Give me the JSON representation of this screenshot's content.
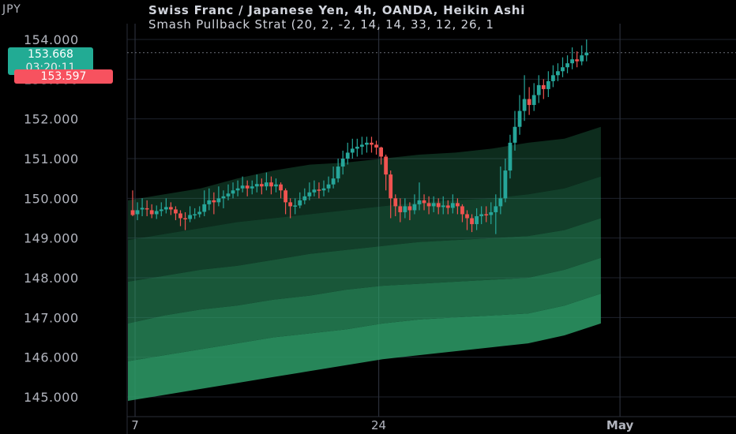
{
  "header": {
    "line1": "Swiss Franc / Japanese Yen, 4h, OANDA, Heikin Ashi",
    "line2": "Smash Pullback Strat (20, 2, -2, 14, 14, 33, 12, 26, 1"
  },
  "currency_label": "JPY",
  "badges": {
    "close_price": "153.668",
    "countdown": "03:20:11",
    "red_price": "153.597"
  },
  "colors": {
    "up": "#26a69a",
    "down": "#ef5350",
    "band_fill": "#2e9e68",
    "grid": "#1e222d",
    "background": "#000000"
  },
  "chart_data": {
    "type": "candlestick",
    "title": "Swiss Franc / Japanese Yen, 4h, OANDA, Heikin Ashi",
    "y_ticks": [
      "145.000",
      "146.000",
      "147.000",
      "148.000",
      "149.000",
      "150.000",
      "151.000",
      "152.000",
      "153.000",
      "154.000"
    ],
    "ylim": [
      144.7,
      154.85
    ],
    "x_ticks": [
      {
        "label": "7",
        "index": 0.5
      },
      {
        "label": "24",
        "index": 51.5
      },
      {
        "label": "May",
        "index": 102
      }
    ],
    "grid": true,
    "last_price_line": 153.668,
    "candles": [
      [
        149.7,
        149.58,
        150.2,
        149.55
      ],
      [
        149.6,
        149.7,
        149.9,
        149.45
      ],
      [
        149.72,
        149.76,
        150.0,
        149.55
      ],
      [
        149.75,
        149.72,
        149.95,
        149.55
      ],
      [
        149.7,
        149.6,
        149.85,
        149.5
      ],
      [
        149.6,
        149.68,
        149.82,
        149.48
      ],
      [
        149.68,
        149.72,
        149.9,
        149.55
      ],
      [
        149.72,
        149.78,
        150.0,
        149.62
      ],
      [
        149.78,
        149.72,
        149.9,
        149.58
      ],
      [
        149.72,
        149.62,
        149.8,
        149.45
      ],
      [
        149.62,
        149.5,
        149.7,
        149.3
      ],
      [
        149.5,
        149.48,
        149.65,
        149.2
      ],
      [
        149.48,
        149.58,
        149.8,
        149.4
      ],
      [
        149.58,
        149.6,
        149.75,
        149.48
      ],
      [
        149.6,
        149.66,
        149.8,
        149.52
      ],
      [
        149.66,
        149.85,
        150.2,
        149.55
      ],
      [
        149.85,
        149.95,
        150.25,
        149.7
      ],
      [
        149.95,
        149.9,
        150.15,
        149.6
      ],
      [
        149.9,
        150.0,
        150.3,
        149.8
      ],
      [
        150.0,
        150.05,
        150.2,
        149.75
      ],
      [
        150.05,
        150.12,
        150.35,
        149.95
      ],
      [
        150.12,
        150.2,
        150.4,
        150.0
      ],
      [
        150.2,
        150.25,
        150.45,
        150.05
      ],
      [
        150.25,
        150.32,
        150.55,
        150.15
      ],
      [
        150.32,
        150.25,
        150.45,
        150.05
      ],
      [
        150.25,
        150.3,
        150.45,
        150.1
      ],
      [
        150.3,
        150.36,
        150.6,
        150.15
      ],
      [
        150.36,
        150.3,
        150.5,
        150.1
      ],
      [
        150.3,
        150.4,
        150.65,
        150.2
      ],
      [
        150.4,
        150.3,
        150.55,
        150.1
      ],
      [
        150.3,
        150.35,
        150.5,
        150.15
      ],
      [
        150.35,
        150.2,
        150.4,
        150.0
      ],
      [
        150.2,
        149.9,
        150.25,
        149.6
      ],
      [
        149.9,
        149.8,
        150.0,
        149.5
      ],
      [
        149.8,
        149.82,
        150.0,
        149.6
      ],
      [
        149.82,
        149.95,
        150.15,
        149.75
      ],
      [
        149.95,
        150.05,
        150.25,
        149.85
      ],
      [
        150.05,
        150.15,
        150.4,
        149.95
      ],
      [
        150.15,
        150.22,
        150.45,
        150.05
      ],
      [
        150.22,
        150.2,
        150.4,
        150.0
      ],
      [
        150.2,
        150.25,
        150.45,
        150.05
      ],
      [
        150.25,
        150.35,
        150.55,
        150.15
      ],
      [
        150.35,
        150.5,
        150.8,
        150.25
      ],
      [
        150.5,
        150.8,
        151.0,
        150.4
      ],
      [
        150.8,
        151.0,
        151.2,
        150.6
      ],
      [
        151.0,
        151.15,
        151.4,
        150.85
      ],
      [
        151.15,
        151.25,
        151.5,
        151.0
      ],
      [
        151.25,
        151.3,
        151.5,
        151.05
      ],
      [
        151.3,
        151.35,
        151.55,
        151.1
      ],
      [
        151.35,
        151.4,
        151.55,
        151.15
      ],
      [
        151.4,
        151.35,
        151.55,
        151.15
      ],
      [
        151.35,
        151.28,
        151.45,
        151.1
      ],
      [
        151.28,
        151.05,
        151.3,
        150.85
      ],
      [
        151.05,
        150.6,
        151.1,
        150.2
      ],
      [
        150.6,
        150.0,
        150.7,
        149.5
      ],
      [
        150.0,
        149.8,
        150.1,
        149.55
      ],
      [
        149.8,
        149.65,
        150.0,
        149.4
      ],
      [
        149.65,
        149.8,
        150.0,
        149.5
      ],
      [
        149.8,
        149.7,
        149.9,
        149.45
      ],
      [
        149.7,
        149.85,
        150.1,
        149.6
      ],
      [
        149.85,
        149.95,
        150.4,
        149.7
      ],
      [
        149.95,
        149.88,
        150.1,
        149.7
      ],
      [
        149.88,
        149.8,
        150.05,
        149.6
      ],
      [
        149.8,
        149.88,
        150.05,
        149.65
      ],
      [
        149.88,
        149.78,
        150.0,
        149.6
      ],
      [
        149.78,
        149.82,
        150.05,
        149.6
      ],
      [
        149.82,
        149.76,
        149.95,
        149.6
      ],
      [
        149.76,
        149.88,
        150.1,
        149.62
      ],
      [
        149.88,
        149.8,
        150.0,
        149.6
      ],
      [
        149.8,
        149.6,
        149.85,
        149.4
      ],
      [
        149.6,
        149.5,
        149.7,
        149.2
      ],
      [
        149.5,
        149.35,
        149.6,
        149.15
      ],
      [
        149.35,
        149.55,
        149.75,
        149.2
      ],
      [
        149.55,
        149.6,
        149.8,
        149.35
      ],
      [
        149.6,
        149.58,
        149.8,
        149.4
      ],
      [
        149.58,
        149.65,
        149.9,
        149.35
      ],
      [
        149.65,
        149.8,
        150.1,
        149.1
      ],
      [
        149.8,
        150.0,
        150.8,
        149.6
      ],
      [
        150.0,
        150.7,
        151.0,
        149.9
      ],
      [
        150.7,
        151.4,
        151.6,
        150.5
      ],
      [
        151.4,
        151.8,
        152.2,
        151.2
      ],
      [
        151.8,
        152.2,
        152.6,
        151.6
      ],
      [
        152.2,
        152.5,
        153.1,
        151.95
      ],
      [
        152.5,
        152.35,
        152.8,
        152.1
      ],
      [
        152.35,
        152.6,
        152.9,
        152.2
      ],
      [
        152.6,
        152.85,
        153.1,
        152.4
      ],
      [
        152.85,
        152.75,
        153.0,
        152.5
      ],
      [
        152.75,
        152.95,
        153.2,
        152.55
      ],
      [
        152.95,
        153.1,
        153.35,
        152.8
      ],
      [
        153.1,
        153.2,
        153.4,
        152.95
      ],
      [
        153.2,
        153.3,
        153.55,
        153.05
      ],
      [
        153.3,
        153.4,
        153.6,
        153.15
      ],
      [
        153.4,
        153.5,
        153.8,
        153.25
      ],
      [
        153.5,
        153.45,
        153.7,
        153.3
      ],
      [
        153.45,
        153.6,
        153.85,
        153.35
      ],
      [
        153.6,
        153.668,
        154.0,
        153.45
      ]
    ],
    "bands": {
      "x_start_index": 0,
      "x_end_index": 98,
      "boundaries": [
        [
          149.95,
          150.1,
          150.25,
          150.5,
          150.7,
          150.85,
          150.9,
          151.0,
          151.1,
          151.15,
          151.25,
          151.4,
          151.5,
          151.8
        ],
        [
          148.95,
          149.1,
          149.25,
          149.4,
          149.5,
          149.6,
          149.7,
          149.8,
          149.9,
          149.95,
          150.0,
          150.1,
          150.25,
          150.55
        ],
        [
          147.9,
          148.05,
          148.2,
          148.3,
          148.45,
          148.6,
          148.7,
          148.8,
          148.9,
          148.95,
          149.0,
          149.05,
          149.2,
          149.5
        ],
        [
          146.85,
          147.05,
          147.2,
          147.3,
          147.45,
          147.55,
          147.7,
          147.8,
          147.85,
          147.9,
          147.95,
          148.0,
          148.2,
          148.5
        ],
        [
          145.9,
          146.05,
          146.2,
          146.35,
          146.5,
          146.6,
          146.7,
          146.85,
          146.95,
          147.0,
          147.05,
          147.1,
          147.3,
          147.6
        ],
        [
          144.9,
          145.05,
          145.2,
          145.35,
          145.5,
          145.65,
          145.8,
          145.95,
          146.05,
          146.15,
          146.25,
          146.35,
          146.55,
          146.85
        ]
      ]
    }
  }
}
